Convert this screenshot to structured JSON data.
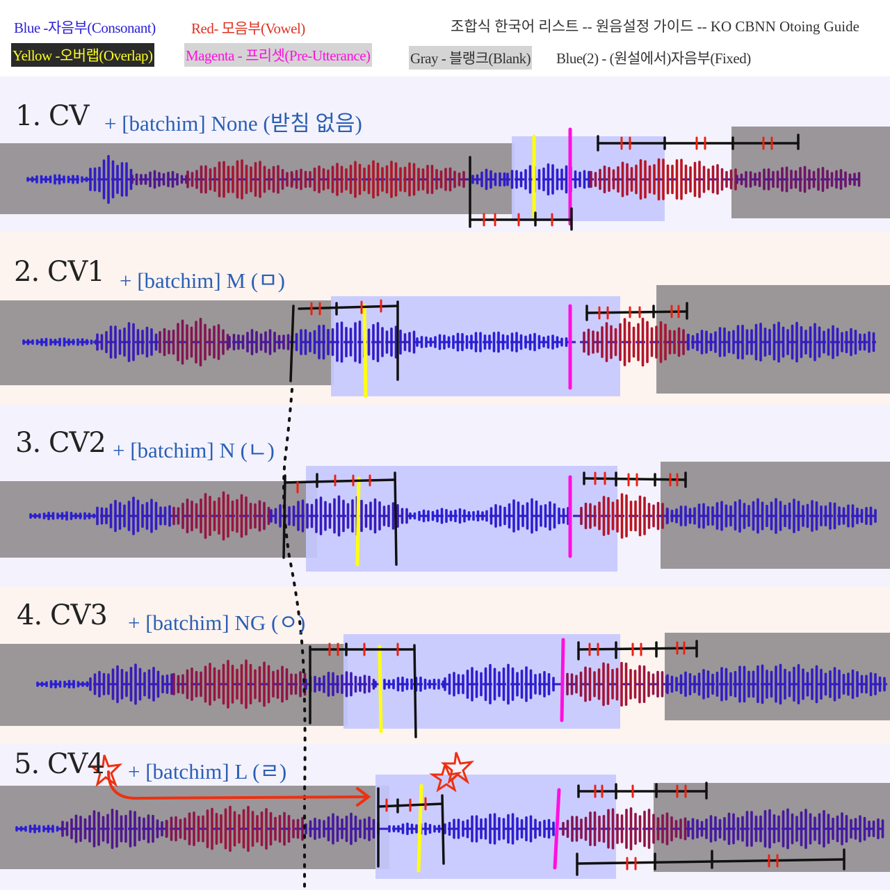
{
  "legend": {
    "blue": "Blue -자음부(Consonant)",
    "red": "Red- 모음부(Vowel)",
    "yellow": "Yellow -오버랩(Overlap)",
    "magenta": "Magenta - 프리셋(Pre-Utterance)",
    "gray": "Gray - 블랭크(Blank)",
    "blue2": "Blue(2) - (원설에서)자음부(Fixed)",
    "title": "조합식 한국어 리스트 -- 원음설정 가이드 -- KO CBNN Otoing Guide"
  },
  "sections": [
    {
      "title": "1. CV",
      "subtitle": "+ [batchim] None (받침 없음)"
    },
    {
      "title": "2. CV1",
      "subtitle": "+ [batchim] M (ㅁ)"
    },
    {
      "title": "3. CV2",
      "subtitle": "+ [batchim] N (ㄴ)"
    },
    {
      "title": "4. CV3",
      "subtitle": "+ [batchim] NG (ㅇ)"
    },
    {
      "title": "5. CV4",
      "subtitle": "+ [batchim] L (ㄹ)"
    }
  ],
  "colors": {
    "consonant": "#2a1fd8",
    "vowel": "#d0201a",
    "overlap": "#ffff10",
    "preutterance": "#ff10e0",
    "blank": "#8a8688",
    "fixed": "#c5c8ff",
    "section_bg_a": "#f4f2fc",
    "section_bg_b": "#fdf3ef"
  }
}
